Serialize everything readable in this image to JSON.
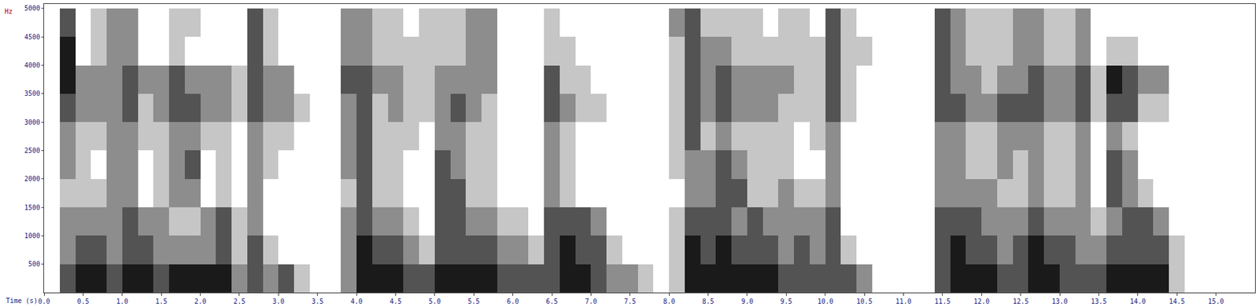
{
  "chart_data": {
    "type": "heatmap",
    "x_label": "Time (s)",
    "y_label": "Hz",
    "color": "#1a1a1a",
    "grid": false,
    "xlim": [
      0,
      15.5
    ],
    "ylim": [
      0,
      5080
    ],
    "zlim": [
      0,
      4
    ],
    "xticks": [
      {
        "value": 0,
        "label": "0.0"
      },
      0.5,
      {
        "value": 1,
        "label": "1.0"
      },
      1.5,
      {
        "value": 2,
        "label": "2.0"
      },
      2.5,
      {
        "value": 3,
        "label": "3.0"
      },
      3.5,
      {
        "value": 4,
        "label": "4.0"
      },
      4.5,
      {
        "value": 5,
        "label": "5.0"
      },
      5.5,
      {
        "value": 6,
        "label": "6.0"
      },
      6.5,
      {
        "value": 7,
        "label": "7.0"
      },
      7.5,
      {
        "value": 8,
        "label": "8.0"
      },
      8.5,
      {
        "value": 9,
        "label": "9.0"
      },
      9.5,
      {
        "value": 10,
        "label": "10.0"
      },
      10.5,
      {
        "value": 11,
        "label": "11.0"
      },
      11.5,
      {
        "value": 12,
        "label": "12.0"
      },
      12.5,
      {
        "value": 13,
        "label": "13.0"
      },
      13.5,
      {
        "value": 14,
        "label": "14.0"
      },
      14.5,
      {
        "value": 15,
        "label": "15.0"
      }
    ],
    "yticks": [
      500,
      1000,
      1500,
      2000,
      2500,
      3000,
      3500,
      4000,
      4500,
      5000
    ],
    "x": [
      0.1,
      0.3,
      0.5,
      0.7,
      0.9,
      1.1,
      1.3,
      1.5,
      1.7,
      1.9,
      2.1,
      2.3,
      2.5,
      2.7,
      2.9,
      3.1,
      3.3,
      3.5,
      3.7,
      3.9,
      4.1,
      4.3,
      4.5,
      4.7,
      4.9,
      5.1,
      5.3,
      5.5,
      5.7,
      5.9,
      6.1,
      6.3,
      6.5,
      6.7,
      6.9,
      7.1,
      7.3,
      7.5,
      7.7,
      7.9,
      8.1,
      8.3,
      8.5,
      8.7,
      8.9,
      9.1,
      9.3,
      9.5,
      9.7,
      9.9,
      10.1,
      10.3,
      10.5,
      10.7,
      10.9,
      11.1,
      11.3,
      11.5,
      11.7,
      11.9,
      12.1,
      12.3,
      12.5,
      12.7,
      12.9,
      13.1,
      13.3,
      13.5,
      13.7,
      13.9,
      14.1,
      14.3,
      14.5,
      14.7,
      14.9,
      15.1,
      15.3
    ],
    "y": [
      250,
      750,
      1250,
      1750,
      2250,
      2750,
      3250,
      3750,
      4250,
      4750
    ],
    "z": [
      [
        0,
        0,
        0,
        0,
        0,
        0,
        0,
        0,
        0,
        0
      ],
      [
        3,
        2,
        2,
        1,
        2,
        2,
        3,
        4,
        4,
        3
      ],
      [
        4,
        3,
        2,
        1,
        1,
        1,
        2,
        2,
        0,
        0
      ],
      [
        4,
        3,
        2,
        1,
        0,
        1,
        2,
        2,
        1,
        1
      ],
      [
        3,
        2,
        2,
        2,
        2,
        2,
        2,
        2,
        2,
        2
      ],
      [
        4,
        3,
        3,
        2,
        2,
        2,
        3,
        3,
        2,
        2
      ],
      [
        4,
        3,
        2,
        0,
        0,
        1,
        1,
        2,
        0,
        0
      ],
      [
        3,
        2,
        2,
        1,
        1,
        1,
        2,
        2,
        0,
        0
      ],
      [
        4,
        2,
        1,
        2,
        2,
        2,
        3,
        3,
        1,
        1
      ],
      [
        4,
        2,
        1,
        2,
        3,
        2,
        3,
        2,
        0,
        1
      ],
      [
        4,
        2,
        2,
        0,
        0,
        1,
        2,
        2,
        0,
        0
      ],
      [
        4,
        3,
        3,
        1,
        1,
        1,
        2,
        2,
        0,
        0
      ],
      [
        2,
        1,
        1,
        0,
        0,
        0,
        1,
        1,
        0,
        0
      ],
      [
        3,
        3,
        2,
        2,
        2,
        2,
        3,
        3,
        3,
        3
      ],
      [
        2,
        1,
        0,
        0,
        1,
        1,
        2,
        2,
        1,
        1
      ],
      [
        3,
        0,
        0,
        0,
        0,
        1,
        2,
        2,
        0,
        0
      ],
      [
        1,
        0,
        0,
        0,
        0,
        0,
        1,
        0,
        0,
        0
      ],
      [
        0,
        0,
        0,
        0,
        0,
        0,
        0,
        0,
        0,
        0
      ],
      [
        0,
        0,
        0,
        0,
        0,
        0,
        0,
        0,
        0,
        0
      ],
      [
        2,
        2,
        2,
        1,
        2,
        2,
        2,
        3,
        2,
        2
      ],
      [
        4,
        4,
        3,
        3,
        3,
        3,
        3,
        3,
        2,
        2
      ],
      [
        4,
        3,
        2,
        1,
        1,
        1,
        1,
        2,
        1,
        1
      ],
      [
        4,
        3,
        2,
        1,
        1,
        1,
        2,
        2,
        1,
        1
      ],
      [
        3,
        2,
        1,
        0,
        0,
        1,
        1,
        1,
        1,
        0
      ],
      [
        3,
        1,
        0,
        0,
        0,
        0,
        1,
        1,
        1,
        1
      ],
      [
        4,
        3,
        3,
        3,
        3,
        2,
        2,
        2,
        1,
        1
      ],
      [
        4,
        3,
        3,
        3,
        2,
        2,
        3,
        2,
        1,
        1
      ],
      [
        4,
        3,
        2,
        1,
        1,
        1,
        2,
        2,
        2,
        2
      ],
      [
        4,
        3,
        2,
        1,
        1,
        1,
        1,
        2,
        2,
        2
      ],
      [
        3,
        2,
        1,
        0,
        0,
        0,
        0,
        0,
        0,
        0
      ],
      [
        3,
        2,
        1,
        0,
        0,
        0,
        0,
        0,
        0,
        0
      ],
      [
        3,
        1,
        0,
        0,
        0,
        0,
        0,
        0,
        0,
        0
      ],
      [
        3,
        3,
        3,
        2,
        2,
        2,
        3,
        3,
        1,
        1
      ],
      [
        4,
        4,
        3,
        1,
        1,
        1,
        2,
        1,
        1,
        0
      ],
      [
        4,
        3,
        3,
        0,
        0,
        0,
        1,
        1,
        0,
        0
      ],
      [
        3,
        3,
        2,
        0,
        0,
        0,
        1,
        0,
        0,
        0
      ],
      [
        2,
        1,
        0,
        0,
        0,
        0,
        0,
        0,
        0,
        0
      ],
      [
        2,
        0,
        0,
        0,
        0,
        0,
        0,
        0,
        0,
        0
      ],
      [
        1,
        0,
        0,
        0,
        0,
        0,
        0,
        0,
        0,
        0
      ],
      [
        0,
        0,
        0,
        0,
        0,
        0,
        0,
        0,
        0,
        0
      ],
      [
        1,
        1,
        1,
        0,
        1,
        1,
        1,
        1,
        1,
        2
      ],
      [
        4,
        4,
        3,
        2,
        2,
        3,
        3,
        3,
        3,
        3
      ],
      [
        4,
        3,
        3,
        2,
        2,
        1,
        2,
        2,
        2,
        1
      ],
      [
        4,
        4,
        3,
        3,
        3,
        2,
        3,
        3,
        2,
        1
      ],
      [
        4,
        3,
        2,
        3,
        2,
        1,
        2,
        2,
        1,
        1
      ],
      [
        4,
        3,
        3,
        1,
        1,
        1,
        2,
        2,
        1,
        1
      ],
      [
        4,
        3,
        2,
        1,
        1,
        1,
        2,
        2,
        1,
        0
      ],
      [
        3,
        2,
        2,
        2,
        1,
        1,
        1,
        2,
        1,
        1
      ],
      [
        3,
        3,
        2,
        1,
        0,
        0,
        1,
        1,
        1,
        1
      ],
      [
        3,
        2,
        2,
        1,
        0,
        1,
        1,
        1,
        1,
        0
      ],
      [
        3,
        3,
        3,
        2,
        2,
        2,
        3,
        3,
        3,
        3
      ],
      [
        3,
        1,
        0,
        0,
        0,
        0,
        1,
        1,
        1,
        1
      ],
      [
        2,
        0,
        0,
        0,
        0,
        0,
        0,
        0,
        1,
        0
      ],
      [
        0,
        0,
        0,
        0,
        0,
        0,
        0,
        0,
        0,
        0
      ],
      [
        0,
        0,
        0,
        0,
        0,
        0,
        0,
        0,
        0,
        0
      ],
      [
        0,
        0,
        0,
        0,
        0,
        0,
        0,
        0,
        0,
        0
      ],
      [
        0,
        0,
        0,
        0,
        0,
        0,
        0,
        0,
        0,
        0
      ],
      [
        3,
        3,
        3,
        2,
        2,
        2,
        3,
        3,
        3,
        3
      ],
      [
        4,
        4,
        3,
        2,
        2,
        2,
        3,
        2,
        2,
        2
      ],
      [
        4,
        3,
        3,
        2,
        1,
        1,
        2,
        2,
        1,
        1
      ],
      [
        4,
        3,
        2,
        2,
        1,
        1,
        2,
        1,
        1,
        1
      ],
      [
        3,
        2,
        2,
        1,
        2,
        2,
        3,
        2,
        1,
        1
      ],
      [
        3,
        3,
        2,
        1,
        1,
        2,
        3,
        2,
        2,
        2
      ],
      [
        4,
        4,
        3,
        2,
        2,
        2,
        3,
        3,
        2,
        2
      ],
      [
        4,
        3,
        2,
        1,
        1,
        1,
        2,
        2,
        1,
        1
      ],
      [
        3,
        3,
        2,
        1,
        1,
        1,
        2,
        2,
        1,
        1
      ],
      [
        3,
        2,
        2,
        2,
        2,
        2,
        3,
        3,
        2,
        2
      ],
      [
        3,
        2,
        1,
        0,
        0,
        0,
        1,
        1,
        0,
        0
      ],
      [
        4,
        3,
        2,
        3,
        3,
        2,
        3,
        4,
        1,
        0
      ],
      [
        4,
        3,
        3,
        2,
        2,
        1,
        3,
        3,
        1,
        0
      ],
      [
        4,
        3,
        3,
        1,
        0,
        0,
        1,
        2,
        0,
        0
      ],
      [
        4,
        3,
        2,
        0,
        0,
        0,
        1,
        2,
        0,
        0
      ],
      [
        1,
        1,
        0,
        0,
        0,
        0,
        0,
        0,
        0,
        0
      ],
      [
        0,
        0,
        0,
        0,
        0,
        0,
        0,
        0,
        0,
        0
      ],
      [
        0,
        0,
        0,
        0,
        0,
        0,
        0,
        0,
        0,
        0
      ],
      [
        0,
        0,
        0,
        0,
        0,
        0,
        0,
        0,
        0,
        0
      ],
      [
        0,
        0,
        0,
        0,
        0,
        0,
        0,
        0,
        0,
        0
      ]
    ]
  }
}
